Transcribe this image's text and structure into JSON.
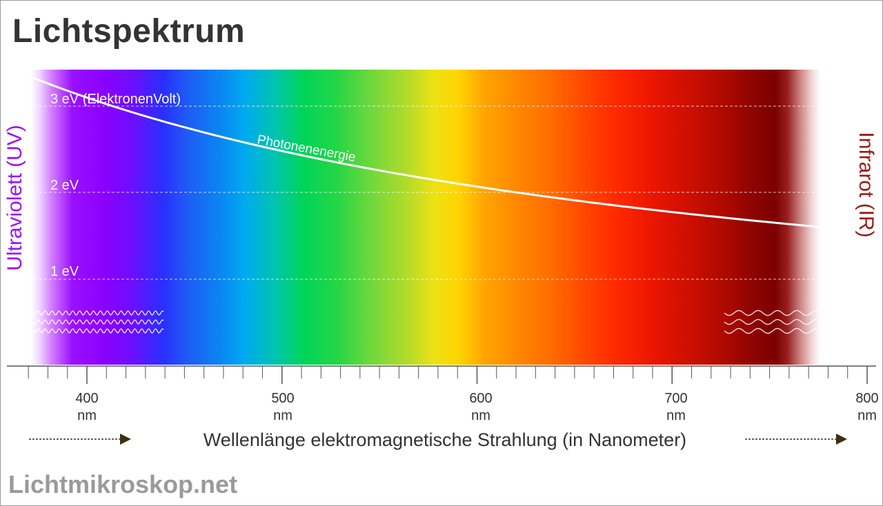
{
  "title": "Lichtspektrum",
  "footer": "Lichtmikroskop.net",
  "side_labels": {
    "left": "Ultraviolett (UV)",
    "right": "Infrarot (IR)"
  },
  "energy_levels": [
    {
      "value": 3,
      "label": "3 eV (ElektronenVolt)"
    },
    {
      "value": 2,
      "label": "2 eV"
    },
    {
      "value": 1,
      "label": "1 eV"
    }
  ],
  "curve_label": "Photonenenergie",
  "axis": {
    "min": 370,
    "max": 800,
    "unit": "nm",
    "title": "Wellenlänge elektromagnetische Strahlung (in Nanometer)",
    "ticks": [
      {
        "value": 400,
        "label": "400"
      },
      {
        "value": 500,
        "label": "500"
      },
      {
        "value": 600,
        "label": "600"
      },
      {
        "value": 700,
        "label": "700"
      },
      {
        "value": 800,
        "label": "800"
      }
    ]
  },
  "colors": {
    "title": "#333333",
    "uv": "#9b10ff",
    "ir": "#9a1a14",
    "footer": "#9a9a9a",
    "arrow": "#3a3012"
  }
}
